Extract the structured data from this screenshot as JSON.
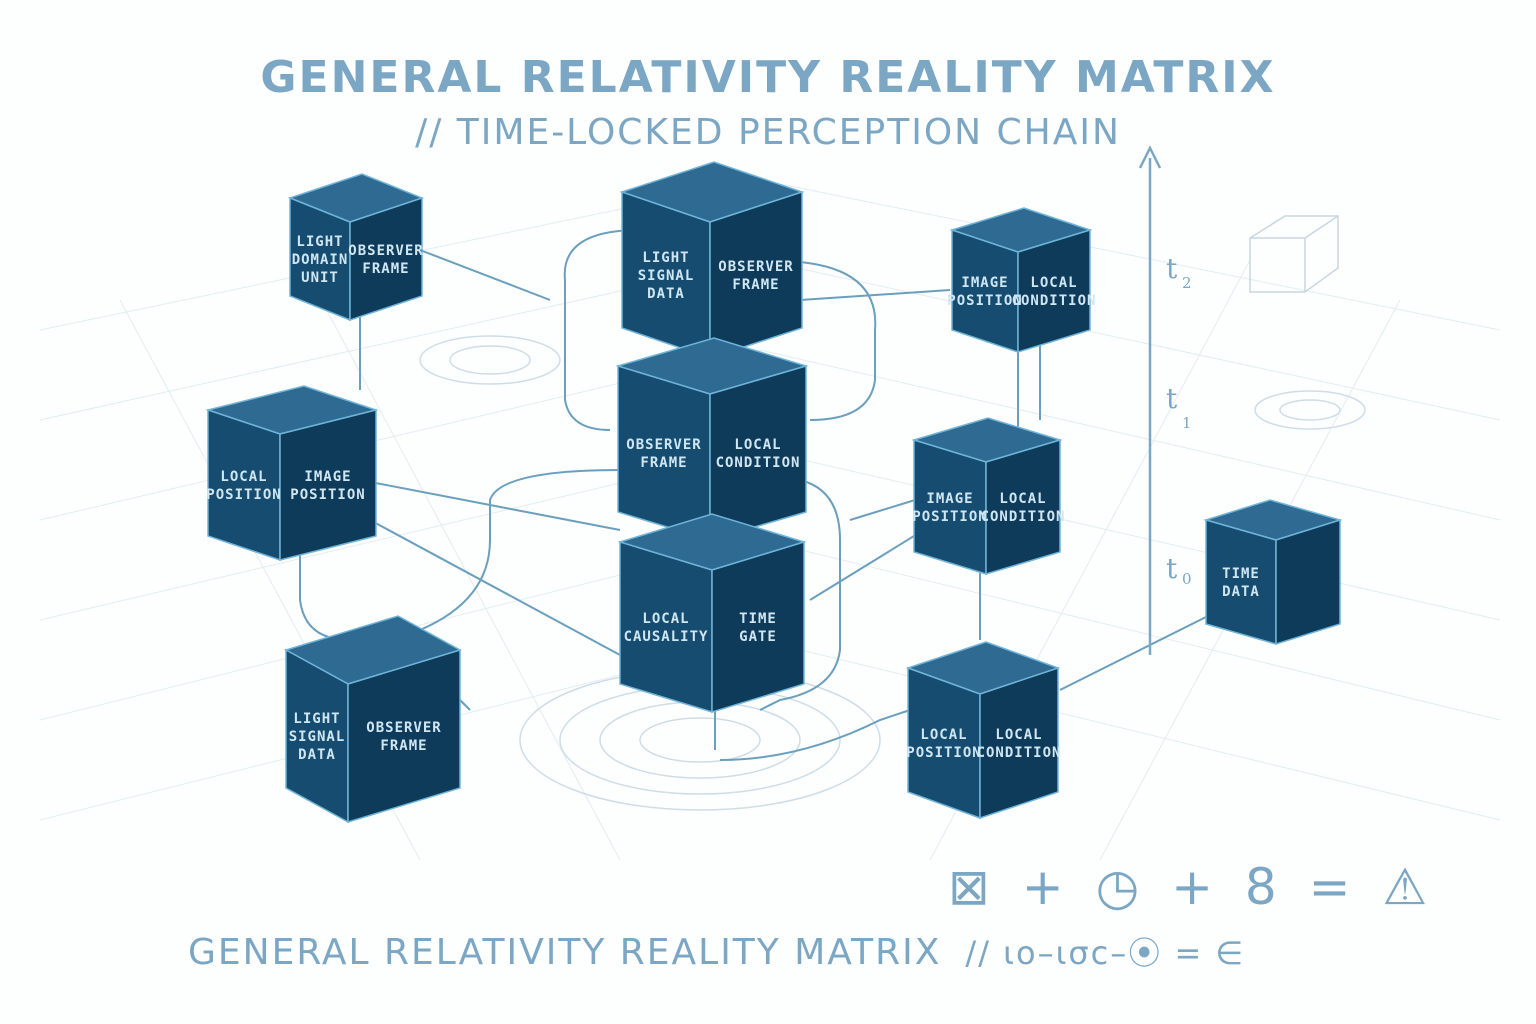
{
  "header": {
    "title": "GENERAL RELATIVITY REALITY MATRIX",
    "subtitle": "// TIME-LOCKED PERCEPTION CHAIN"
  },
  "footer": {
    "title": "GENERAL RELATIVITY REALITY MATRIX",
    "suffix": "// ιο–ισс–⦿ = ∈"
  },
  "equation": "⊠ + ◷ + 8 = ⚠",
  "time_axis": {
    "labels": [
      {
        "main": "t",
        "sub": "2"
      },
      {
        "main": "t",
        "sub": "1"
      },
      {
        "main": "t",
        "sub": "0"
      }
    ]
  },
  "cubes": [
    {
      "id": "c1",
      "left": [
        "LIGHT",
        "DOMAIN",
        "UNIT"
      ],
      "right": [
        "OBSERVER",
        "FRAME"
      ]
    },
    {
      "id": "c2",
      "left": [
        "LIGHT",
        "SIGNAL",
        "DATA"
      ],
      "right": [
        "OBSERVER",
        "FRAME"
      ]
    },
    {
      "id": "c3",
      "left": [
        "IMAGE",
        "POSITION"
      ],
      "right": [
        "LOCAL",
        "CONDITION"
      ]
    },
    {
      "id": "c4",
      "left": [
        "LOCAL",
        "POSITION"
      ],
      "right": [
        "IMAGE",
        "POSITION"
      ]
    },
    {
      "id": "c5",
      "left": [
        "OBSERVER",
        "FRAME"
      ],
      "right": [
        "LOCAL",
        "CONDITION"
      ]
    },
    {
      "id": "c6",
      "left": [
        "IMAGE",
        "POSITION"
      ],
      "right": [
        "LOCAL",
        "CONDITION"
      ]
    },
    {
      "id": "c7",
      "left": [
        "LOCAL",
        "CAUSALITY"
      ],
      "right": [
        "TIME",
        "GATE"
      ]
    },
    {
      "id": "c8",
      "left": [
        "TIME",
        "DATA"
      ],
      "right": []
    },
    {
      "id": "c9",
      "left": [
        "LIGHT",
        "SIGNAL",
        "DATA"
      ],
      "right": [
        "OBSERVER",
        "FRAME"
      ]
    },
    {
      "id": "c10",
      "left": [
        "LOCAL",
        "POSITION"
      ],
      "right": [
        "LOCAL",
        "CONDITION"
      ]
    }
  ],
  "colors": {
    "cube_top": "#2e6a92",
    "cube_left": "#164c70",
    "cube_right": "#0f3b5a",
    "cube_edge": "#6fb4d8",
    "line": "#6a9fbd",
    "text_light": "#7ba7c4"
  }
}
